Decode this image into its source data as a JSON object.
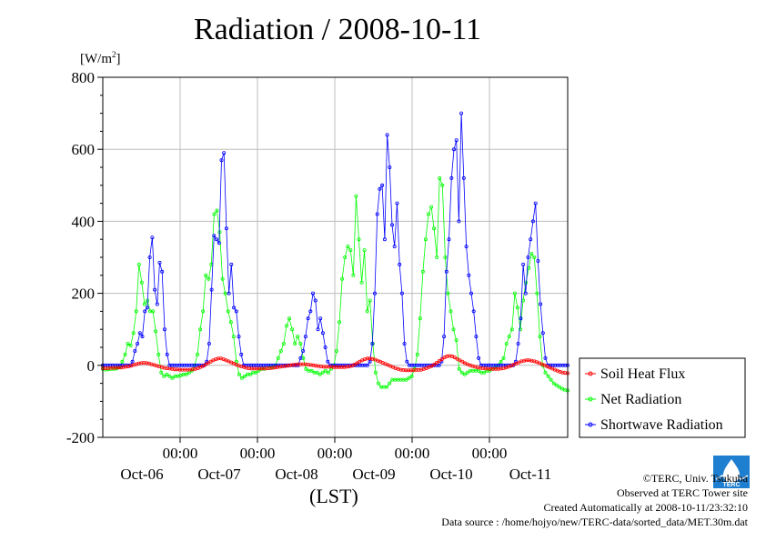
{
  "page": {
    "title": "Radiation / 2008-10-11",
    "unit_label": "[W/m",
    "unit_sup": "2",
    "unit_close": "]",
    "x_axis_label": "(LST)",
    "footer": {
      "copyright": "©TERC, Univ. Tsukuba",
      "observed": "Observed at TERC Tower site",
      "created": "Created Automatically at 2008-10-11/23:32:10",
      "source": "Data source : /home/hojyo/new/TERC-data/sorted_data/MET.30m.dat"
    },
    "logo_text": "TERC"
  },
  "chart_data": {
    "type": "line",
    "title": "Radiation / 2008-10-11",
    "ylabel": "[W/m2]",
    "xlabel": "(LST)",
    "ylim": [
      -200,
      800
    ],
    "y_ticks": [
      -200,
      0,
      200,
      400,
      600,
      800
    ],
    "x_ticks": [
      "00:00",
      "00:00",
      "00:00",
      "00:00",
      "00:00"
    ],
    "x_day_labels": [
      "Oct-06",
      "Oct-07",
      "Oct-08",
      "Oct-09",
      "Oct-10",
      "Oct-11"
    ],
    "grid": true,
    "legend_position": "right",
    "series": [
      {
        "name": "Soil Heat Flux",
        "color": "#ff0000",
        "values": [
          -8,
          -8,
          -8,
          -7,
          -7,
          -7,
          -6,
          -6,
          -5,
          -4,
          -3,
          -1,
          1,
          3,
          5,
          6,
          7,
          6,
          5,
          3,
          1,
          -1,
          -3,
          -5,
          -7,
          -8,
          -9,
          -10,
          -11,
          -11,
          -12,
          -12,
          -12,
          -12,
          -12,
          -11,
          -10,
          -8,
          -5,
          -2,
          2,
          6,
          10,
          14,
          17,
          19,
          19,
          17,
          14,
          11,
          8,
          5,
          2,
          -1,
          -3,
          -5,
          -7,
          -8,
          -9,
          -9,
          -9,
          -9,
          -9,
          -9,
          -8,
          -8,
          -7,
          -6,
          -5,
          -4,
          -3,
          -2,
          -1,
          0,
          1,
          2,
          3,
          3,
          3,
          3,
          2,
          1,
          0,
          -1,
          -2,
          -3,
          -4,
          -4,
          -4,
          -4,
          -5,
          -5,
          -5,
          -5,
          -5,
          -4,
          -3,
          -1,
          2,
          6,
          10,
          14,
          17,
          19,
          19,
          18,
          16,
          13,
          10,
          7,
          4,
          1,
          -2,
          -5,
          -8,
          -10,
          -12,
          -13,
          -14,
          -14,
          -14,
          -14,
          -13,
          -13,
          -12,
          -10,
          -8,
          -5,
          -2,
          2,
          7,
          12,
          17,
          22,
          25,
          26,
          25,
          22,
          18,
          14,
          10,
          6,
          3,
          0,
          -2,
          -4,
          -6,
          -7,
          -8,
          -9,
          -9,
          -10,
          -10,
          -10,
          -10,
          -9,
          -8,
          -6,
          -4,
          -1,
          2,
          5,
          8,
          11,
          13,
          14,
          14,
          13,
          11,
          9,
          6,
          3,
          0,
          -3,
          -6,
          -9,
          -12,
          -15,
          -18,
          -20,
          -21,
          -22
        ]
      },
      {
        "name": "Net Radiation",
        "color": "#00ff00",
        "values": [
          -10,
          -12,
          -11,
          -10,
          -10,
          -9,
          -5,
          10,
          30,
          60,
          55,
          90,
          150,
          280,
          230,
          170,
          180,
          150,
          150,
          95,
          30,
          -20,
          -30,
          -25,
          -30,
          -35,
          -30,
          -30,
          -28,
          -25,
          -25,
          -20,
          -15,
          0,
          30,
          100,
          150,
          250,
          240,
          280,
          420,
          430,
          370,
          240,
          200,
          150,
          120,
          80,
          10,
          -25,
          -35,
          -30,
          -25,
          -25,
          -20,
          -20,
          -15,
          -10,
          -10,
          -8,
          -5,
          -5,
          0,
          20,
          40,
          60,
          110,
          130,
          100,
          60,
          80,
          60,
          20,
          -10,
          -15,
          -15,
          -20,
          -20,
          -25,
          -20,
          -15,
          -20,
          -10,
          0,
          40,
          120,
          240,
          300,
          330,
          320,
          250,
          470,
          350,
          230,
          320,
          150,
          180,
          60,
          -20,
          -50,
          -60,
          -60,
          -60,
          -50,
          -40,
          -40,
          -40,
          -40,
          -40,
          -40,
          -35,
          -30,
          -10,
          30,
          130,
          260,
          350,
          420,
          440,
          380,
          300,
          520,
          500,
          300,
          200,
          150,
          100,
          70,
          -10,
          -20,
          -25,
          -20,
          -15,
          -15,
          -15,
          -15,
          -20,
          -20,
          -15,
          -15,
          -10,
          -5,
          0,
          10,
          20,
          60,
          80,
          100,
          200,
          160,
          100,
          180,
          230,
          270,
          310,
          300,
          200,
          80,
          0,
          -20,
          -30,
          -40,
          -50,
          -55,
          -60,
          -65,
          -68,
          -70
        ]
      },
      {
        "name": "Shortwave Radiation",
        "color": "#0000ff",
        "values": [
          0,
          0,
          0,
          0,
          0,
          0,
          0,
          0,
          0,
          0,
          0,
          0,
          10,
          40,
          60,
          90,
          80,
          150,
          160,
          300,
          355,
          210,
          170,
          285,
          260,
          100,
          30,
          0,
          0,
          0,
          0,
          0,
          0,
          0,
          0,
          0,
          0,
          0,
          0,
          0,
          0,
          0,
          10,
          60,
          210,
          360,
          350,
          340,
          570,
          590,
          380,
          200,
          280,
          160,
          150,
          80,
          30,
          0,
          0,
          0,
          0,
          0,
          0,
          0,
          0,
          0,
          0,
          0,
          0,
          0,
          0,
          0,
          0,
          0,
          0,
          0,
          0,
          0,
          0,
          0,
          20,
          40,
          80,
          130,
          150,
          200,
          180,
          100,
          130,
          90,
          50,
          10,
          0,
          0,
          0,
          0,
          0,
          0,
          0,
          0,
          0,
          0,
          0,
          0,
          0,
          0,
          0,
          0,
          10,
          60,
          200,
          420,
          490,
          500,
          350,
          640,
          550,
          390,
          330,
          450,
          280,
          200,
          60,
          10,
          0,
          0,
          0,
          0,
          0,
          0,
          0,
          0,
          0,
          0,
          0,
          0,
          0,
          10,
          80,
          260,
          350,
          520,
          600,
          625,
          400,
          700,
          520,
          330,
          250,
          200,
          150,
          80,
          20,
          0,
          0,
          0,
          0,
          0,
          0,
          0,
          0,
          0,
          0,
          0,
          0,
          0,
          0,
          10,
          60,
          130,
          280,
          200,
          300,
          350,
          400,
          450,
          290,
          170,
          90,
          20,
          0,
          0,
          0,
          0,
          0,
          0,
          0,
          0,
          0
        ]
      }
    ]
  }
}
